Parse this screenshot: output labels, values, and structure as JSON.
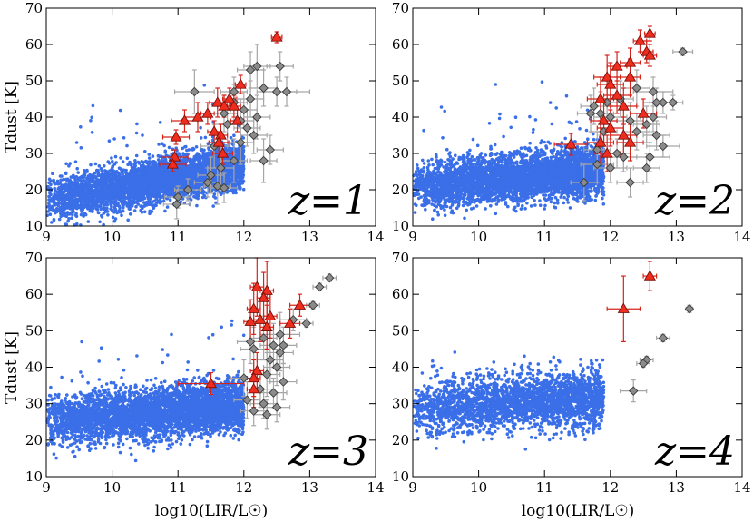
{
  "figure": {
    "xlabel": "log10(LIR/L☉)",
    "ylabel": "Tdust [K]"
  },
  "colors": {
    "sim": "#3a6fe8",
    "sim_stroke": "#3a6fe8",
    "red": "#ee2d1e",
    "red_edge": "#7a0e08",
    "red_err": "#d8231a",
    "gray": "#8b8b8b",
    "gray_edge": "#3a3a3a",
    "gray_err": "#a6a6a6"
  },
  "chart_data": [
    {
      "type": "scatter",
      "panel": "z=1",
      "title": "z=1",
      "xlabel": "",
      "ylabel": "Tdust [K]",
      "xlim": [
        9,
        14
      ],
      "ylim": [
        10,
        70
      ],
      "xticks": [
        "9",
        "10",
        "11",
        "12",
        "13",
        "14"
      ],
      "yticks": [
        "10",
        "20",
        "30",
        "40",
        "50",
        "60",
        "70"
      ],
      "simulation": {
        "n": 4200,
        "x_min": 9.0,
        "x_max": 12.0,
        "slope": 3.2,
        "intercept": 17.0,
        "scatter": 3.0,
        "outlier_frac": 0.01
      },
      "red_triangles": [
        {
          "x": 12.5,
          "y": 62,
          "xerr": 0.08,
          "yerr": 1.5
        },
        {
          "x": 11.95,
          "y": 49,
          "xerr": 0.08,
          "yerr": 2.5
        },
        {
          "x": 11.78,
          "y": 45,
          "xerr": 0.1,
          "yerr": 3
        },
        {
          "x": 11.6,
          "y": 44,
          "xerr": 0.12,
          "yerr": 4
        },
        {
          "x": 11.45,
          "y": 41,
          "xerr": 0.1,
          "yerr": 3
        },
        {
          "x": 11.3,
          "y": 40,
          "xerr": 0.2,
          "yerr": 4
        },
        {
          "x": 11.1,
          "y": 39,
          "xerr": 0.2,
          "yerr": 3
        },
        {
          "x": 11.7,
          "y": 43,
          "xerr": 0.1,
          "yerr": 3
        },
        {
          "x": 11.55,
          "y": 36,
          "xerr": 0.1,
          "yerr": 3
        },
        {
          "x": 11.65,
          "y": 35,
          "xerr": 0.1,
          "yerr": 3
        },
        {
          "x": 10.97,
          "y": 34.5,
          "xerr": 0.2,
          "yerr": 2
        },
        {
          "x": 11.62,
          "y": 33,
          "xerr": 0.15,
          "yerr": 3
        },
        {
          "x": 11.68,
          "y": 30,
          "xerr": 0.15,
          "yerr": 3
        },
        {
          "x": 10.95,
          "y": 29,
          "xerr": 0.2,
          "yerr": 2
        },
        {
          "x": 10.92,
          "y": 27,
          "xerr": 0.2,
          "yerr": 2
        },
        {
          "x": 11.9,
          "y": 39,
          "xerr": 0.1,
          "yerr": 3
        },
        {
          "x": 11.85,
          "y": 43,
          "xerr": 0.1,
          "yerr": 3
        }
      ],
      "gray_diamonds": [
        {
          "x": 12.55,
          "y": 54,
          "xerr": 0.2,
          "yerr": 4
        },
        {
          "x": 12.2,
          "y": 54,
          "xerr": 0.2,
          "yerr": 6
        },
        {
          "x": 12.1,
          "y": 53,
          "xerr": 0.2,
          "yerr": 5
        },
        {
          "x": 12.65,
          "y": 47,
          "xerr": 0.35,
          "yerr": 4
        },
        {
          "x": 12.5,
          "y": 47,
          "xerr": 0.3,
          "yerr": 4
        },
        {
          "x": 12.3,
          "y": 48,
          "xerr": 0.2,
          "yerr": 5
        },
        {
          "x": 11.25,
          "y": 47,
          "xerr": 0.3,
          "yerr": 6
        },
        {
          "x": 12.1,
          "y": 45,
          "xerr": 0.2,
          "yerr": 5
        },
        {
          "x": 11.85,
          "y": 44,
          "xerr": 0.2,
          "yerr": 5
        },
        {
          "x": 12.2,
          "y": 40,
          "xerr": 0.2,
          "yerr": 6
        },
        {
          "x": 11.95,
          "y": 39,
          "xerr": 0.2,
          "yerr": 6
        },
        {
          "x": 12.05,
          "y": 37,
          "xerr": 0.2,
          "yerr": 5
        },
        {
          "x": 11.75,
          "y": 38,
          "xerr": 0.2,
          "yerr": 6
        },
        {
          "x": 11.7,
          "y": 41,
          "xerr": 0.2,
          "yerr": 5
        },
        {
          "x": 11.95,
          "y": 33,
          "xerr": 0.2,
          "yerr": 6
        },
        {
          "x": 12.15,
          "y": 35,
          "xerr": 0.2,
          "yerr": 5
        },
        {
          "x": 11.55,
          "y": 32,
          "xerr": 0.2,
          "yerr": 6
        },
        {
          "x": 12.4,
          "y": 31,
          "xerr": 0.2,
          "yerr": 4
        },
        {
          "x": 12.3,
          "y": 28,
          "xerr": 0.2,
          "yerr": 6
        },
        {
          "x": 11.85,
          "y": 28,
          "xerr": 0.2,
          "yerr": 6
        },
        {
          "x": 11.65,
          "y": 26,
          "xerr": 0.2,
          "yerr": 6
        },
        {
          "x": 11.5,
          "y": 24,
          "xerr": 0.2,
          "yerr": 5
        },
        {
          "x": 11.6,
          "y": 21,
          "xerr": 0.2,
          "yerr": 5
        },
        {
          "x": 11.45,
          "y": 22,
          "xerr": 0.2,
          "yerr": 4
        },
        {
          "x": 11.7,
          "y": 20.5,
          "xerr": 0.2,
          "yerr": 4
        },
        {
          "x": 11.15,
          "y": 20,
          "xerr": 0.2,
          "yerr": 3
        },
        {
          "x": 11.0,
          "y": 18,
          "xerr": 0.2,
          "yerr": 3
        },
        {
          "x": 10.98,
          "y": 16,
          "xerr": 0.2,
          "yerr": 4
        },
        {
          "x": 12.0,
          "y": 42,
          "xerr": 0.2,
          "yerr": 5
        },
        {
          "x": 11.85,
          "y": 47,
          "xerr": 0.2,
          "yerr": 4
        }
      ]
    },
    {
      "type": "scatter",
      "panel": "z=2",
      "title": "z=2",
      "xlabel": "",
      "ylabel": "",
      "xlim": [
        9,
        14
      ],
      "ylim": [
        10,
        70
      ],
      "xticks": [
        "9",
        "10",
        "11",
        "12",
        "13",
        "14"
      ],
      "yticks": [
        "10",
        "20",
        "30",
        "40",
        "50",
        "60",
        "70"
      ],
      "simulation": {
        "n": 4200,
        "x_min": 9.0,
        "x_max": 11.9,
        "slope": 1.5,
        "intercept": 21.0,
        "scatter": 3.3,
        "outlier_frac": 0.006
      },
      "red_triangles": [
        {
          "x": 12.6,
          "y": 63,
          "xerr": 0.08,
          "yerr": 2
        },
        {
          "x": 12.45,
          "y": 61,
          "xerr": 0.1,
          "yerr": 3
        },
        {
          "x": 12.55,
          "y": 58,
          "xerr": 0.1,
          "yerr": 3
        },
        {
          "x": 12.3,
          "y": 55,
          "xerr": 0.15,
          "yerr": 4
        },
        {
          "x": 12.1,
          "y": 54,
          "xerr": 0.15,
          "yerr": 4
        },
        {
          "x": 12.6,
          "y": 57,
          "xerr": 0.1,
          "yerr": 3
        },
        {
          "x": 11.95,
          "y": 51,
          "xerr": 0.2,
          "yerr": 6
        },
        {
          "x": 12.3,
          "y": 51,
          "xerr": 0.15,
          "yerr": 5
        },
        {
          "x": 12.0,
          "y": 49,
          "xerr": 0.2,
          "yerr": 6
        },
        {
          "x": 12.1,
          "y": 46,
          "xerr": 0.2,
          "yerr": 5
        },
        {
          "x": 11.85,
          "y": 45,
          "xerr": 0.2,
          "yerr": 6
        },
        {
          "x": 12.2,
          "y": 43,
          "xerr": 0.2,
          "yerr": 5
        },
        {
          "x": 12.5,
          "y": 41,
          "xerr": 0.2,
          "yerr": 4
        },
        {
          "x": 11.9,
          "y": 39,
          "xerr": 0.2,
          "yerr": 6
        },
        {
          "x": 12.0,
          "y": 37,
          "xerr": 0.2,
          "yerr": 5
        },
        {
          "x": 11.85,
          "y": 33,
          "xerr": 0.2,
          "yerr": 6
        },
        {
          "x": 11.4,
          "y": 32.5,
          "xerr": 0.25,
          "yerr": 3
        },
        {
          "x": 12.2,
          "y": 35,
          "xerr": 0.2,
          "yerr": 5
        },
        {
          "x": 11.95,
          "y": 30,
          "xerr": 0.2,
          "yerr": 5
        },
        {
          "x": 12.3,
          "y": 33,
          "xerr": 0.2,
          "yerr": 5
        }
      ],
      "gray_diamonds": [
        {
          "x": 13.1,
          "y": 58,
          "xerr": 0.15,
          "yerr": 1
        },
        {
          "x": 12.8,
          "y": 44,
          "xerr": 0.2,
          "yerr": 3
        },
        {
          "x": 12.95,
          "y": 44,
          "xerr": 0.15,
          "yerr": 2
        },
        {
          "x": 12.65,
          "y": 47,
          "xerr": 0.3,
          "yerr": 4
        },
        {
          "x": 12.7,
          "y": 44,
          "xerr": 0.2,
          "yerr": 4
        },
        {
          "x": 12.4,
          "y": 48,
          "xerr": 0.2,
          "yerr": 5
        },
        {
          "x": 12.15,
          "y": 45,
          "xerr": 0.2,
          "yerr": 5
        },
        {
          "x": 11.95,
          "y": 44,
          "xerr": 0.2,
          "yerr": 6
        },
        {
          "x": 11.75,
          "y": 43,
          "xerr": 0.2,
          "yerr": 5
        },
        {
          "x": 11.7,
          "y": 41,
          "xerr": 0.2,
          "yerr": 5
        },
        {
          "x": 11.85,
          "y": 41,
          "xerr": 0.2,
          "yerr": 6
        },
        {
          "x": 12.0,
          "y": 40,
          "xerr": 0.25,
          "yerr": 6
        },
        {
          "x": 12.3,
          "y": 39,
          "xerr": 0.2,
          "yerr": 5
        },
        {
          "x": 12.55,
          "y": 38,
          "xerr": 0.2,
          "yerr": 5
        },
        {
          "x": 12.4,
          "y": 36,
          "xerr": 0.2,
          "yerr": 5
        },
        {
          "x": 12.7,
          "y": 35,
          "xerr": 0.2,
          "yerr": 4
        },
        {
          "x": 12.8,
          "y": 32,
          "xerr": 0.25,
          "yerr": 3
        },
        {
          "x": 12.6,
          "y": 29,
          "xerr": 0.3,
          "yerr": 4
        },
        {
          "x": 12.1,
          "y": 30,
          "xerr": 0.2,
          "yerr": 4
        },
        {
          "x": 11.8,
          "y": 27,
          "xerr": 0.25,
          "yerr": 5
        },
        {
          "x": 12.0,
          "y": 26,
          "xerr": 0.25,
          "yerr": 4
        },
        {
          "x": 11.6,
          "y": 22,
          "xerr": 0.2,
          "yerr": 5
        },
        {
          "x": 12.3,
          "y": 22,
          "xerr": 0.2,
          "yerr": 4
        },
        {
          "x": 12.55,
          "y": 26,
          "xerr": 0.2,
          "yerr": 4
        },
        {
          "x": 11.9,
          "y": 36,
          "xerr": 0.2,
          "yerr": 5
        },
        {
          "x": 12.65,
          "y": 40,
          "xerr": 0.2,
          "yerr": 4
        },
        {
          "x": 11.8,
          "y": 31,
          "xerr": 0.2,
          "yerr": 5
        },
        {
          "x": 12.2,
          "y": 29,
          "xerr": 0.2,
          "yerr": 4
        }
      ]
    },
    {
      "type": "scatter",
      "panel": "z=3",
      "title": "z=3",
      "xlabel": "log10(LIR/L☉)",
      "ylabel": "Tdust [K]",
      "xlim": [
        9,
        14
      ],
      "ylim": [
        10,
        70
      ],
      "xticks": [
        "9",
        "10",
        "11",
        "12",
        "13",
        "14"
      ],
      "yticks": [
        "10",
        "20",
        "30",
        "40",
        "50",
        "60",
        "70"
      ],
      "simulation": {
        "n": 4200,
        "x_min": 9.0,
        "x_max": 12.0,
        "slope": 1.5,
        "intercept": 25.0,
        "scatter": 3.5,
        "outlier_frac": 0.005
      },
      "red_triangles": [
        {
          "x": 12.2,
          "y": 62,
          "xerr": 0.1,
          "yerr": 8
        },
        {
          "x": 12.35,
          "y": 61,
          "xerr": 0.1,
          "yerr": 8
        },
        {
          "x": 12.3,
          "y": 59,
          "xerr": 0.1,
          "yerr": 7
        },
        {
          "x": 12.85,
          "y": 57,
          "xerr": 0.15,
          "yerr": 3
        },
        {
          "x": 12.15,
          "y": 56,
          "xerr": 0.1,
          "yerr": 7
        },
        {
          "x": 12.4,
          "y": 54,
          "xerr": 0.1,
          "yerr": 6
        },
        {
          "x": 12.25,
          "y": 53,
          "xerr": 0.1,
          "yerr": 6
        },
        {
          "x": 12.1,
          "y": 52.5,
          "xerr": 0.1,
          "yerr": 6
        },
        {
          "x": 12.7,
          "y": 52,
          "xerr": 0.15,
          "yerr": 4
        },
        {
          "x": 12.35,
          "y": 51,
          "xerr": 0.1,
          "yerr": 6
        },
        {
          "x": 12.2,
          "y": 39,
          "xerr": 0.1,
          "yerr": 5
        },
        {
          "x": 12.15,
          "y": 37,
          "xerr": 0.1,
          "yerr": 5
        },
        {
          "x": 11.5,
          "y": 35.5,
          "xerr": 0.5,
          "yerr": 3
        },
        {
          "x": 12.15,
          "y": 34,
          "xerr": 0.1,
          "yerr": 5
        }
      ],
      "gray_diamonds": [
        {
          "x": 13.3,
          "y": 64.5,
          "xerr": 0.1,
          "yerr": 1
        },
        {
          "x": 13.15,
          "y": 62,
          "xerr": 0.1,
          "yerr": 1
        },
        {
          "x": 13.05,
          "y": 57,
          "xerr": 0.1,
          "yerr": 1
        },
        {
          "x": 12.95,
          "y": 52,
          "xerr": 0.1,
          "yerr": 1
        },
        {
          "x": 12.75,
          "y": 53,
          "xerr": 0.2,
          "yerr": 3
        },
        {
          "x": 12.55,
          "y": 49,
          "xerr": 0.3,
          "yerr": 6
        },
        {
          "x": 12.1,
          "y": 47,
          "xerr": 0.2,
          "yerr": 6
        },
        {
          "x": 12.45,
          "y": 46,
          "xerr": 0.2,
          "yerr": 6
        },
        {
          "x": 12.6,
          "y": 46,
          "xerr": 0.2,
          "yerr": 5
        },
        {
          "x": 12.15,
          "y": 45,
          "xerr": 0.2,
          "yerr": 6
        },
        {
          "x": 12.4,
          "y": 42,
          "xerr": 0.2,
          "yerr": 6
        },
        {
          "x": 12.5,
          "y": 40,
          "xerr": 0.2,
          "yerr": 5
        },
        {
          "x": 12.35,
          "y": 38,
          "xerr": 0.2,
          "yerr": 6
        },
        {
          "x": 12.0,
          "y": 37,
          "xerr": 0.2,
          "yerr": 5
        },
        {
          "x": 12.6,
          "y": 36,
          "xerr": 0.2,
          "yerr": 5
        },
        {
          "x": 12.25,
          "y": 34,
          "xerr": 0.2,
          "yerr": 5
        },
        {
          "x": 12.45,
          "y": 33,
          "xerr": 0.2,
          "yerr": 4
        },
        {
          "x": 12.05,
          "y": 31,
          "xerr": 0.2,
          "yerr": 5
        },
        {
          "x": 12.3,
          "y": 30,
          "xerr": 0.2,
          "yerr": 4
        },
        {
          "x": 12.15,
          "y": 28,
          "xerr": 0.2,
          "yerr": 4
        },
        {
          "x": 12.35,
          "y": 27,
          "xerr": 0.2,
          "yerr": 4
        },
        {
          "x": 12.5,
          "y": 29,
          "xerr": 0.2,
          "yerr": 4
        },
        {
          "x": 12.55,
          "y": 44,
          "xerr": 0.2,
          "yerr": 5
        },
        {
          "x": 12.3,
          "y": 48,
          "xerr": 0.2,
          "yerr": 6
        }
      ]
    },
    {
      "type": "scatter",
      "panel": "z=4",
      "title": "z=4",
      "xlabel": "log10(LIR/L☉)",
      "ylabel": "",
      "xlim": [
        9,
        14
      ],
      "ylim": [
        10,
        70
      ],
      "xticks": [
        "9",
        "10",
        "11",
        "12",
        "13",
        "14"
      ],
      "yticks": [
        "10",
        "20",
        "30",
        "40",
        "50",
        "60",
        "70"
      ],
      "simulation": {
        "n": 2600,
        "x_min": 9.0,
        "x_max": 11.9,
        "slope": 1.2,
        "intercept": 28.5,
        "scatter": 3.8,
        "outlier_frac": 0.0
      },
      "red_triangles": [
        {
          "x": 12.6,
          "y": 65,
          "xerr": 0.1,
          "yerr": 4
        },
        {
          "x": 12.2,
          "y": 56,
          "xerr": 0.25,
          "yerr": 9
        }
      ],
      "gray_diamonds": [
        {
          "x": 13.2,
          "y": 56,
          "xerr": 0.05,
          "yerr": 1
        },
        {
          "x": 12.8,
          "y": 48,
          "xerr": 0.1,
          "yerr": 1
        },
        {
          "x": 12.55,
          "y": 42,
          "xerr": 0.1,
          "yerr": 1
        },
        {
          "x": 12.5,
          "y": 41,
          "xerr": 0.1,
          "yerr": 1
        },
        {
          "x": 12.35,
          "y": 33.5,
          "xerr": 0.2,
          "yerr": 3
        }
      ]
    }
  ]
}
